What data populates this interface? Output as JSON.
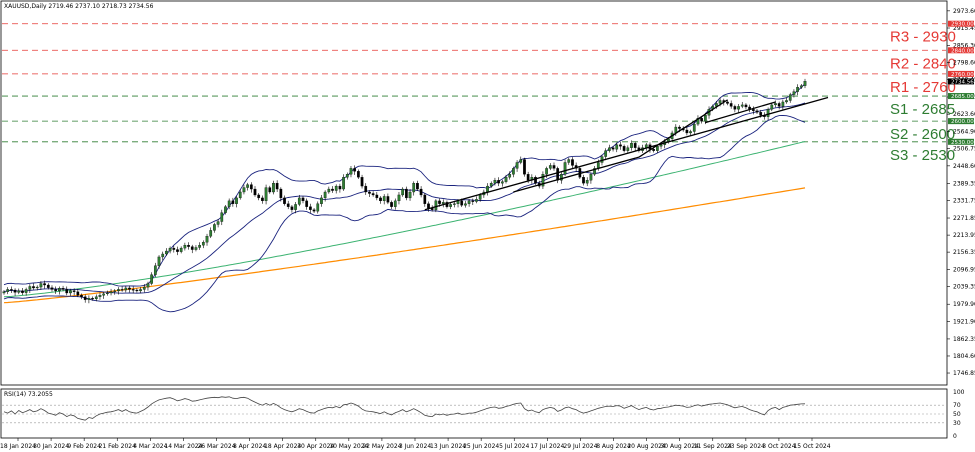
{
  "chart_data": {
    "type": "candlestick",
    "title": "XAUUSD,Daily  2719.46 2737.10 2718.73 2734.56",
    "price_axis": {
      "ticks": [
        "2973.60",
        "2915.45",
        "2856.30",
        "2798.60",
        "2740.45",
        "2681.75",
        "2623.60",
        "2564.90",
        "2506.75",
        "2448.60",
        "2389.35",
        "2331.75",
        "2271.85",
        "2213.95",
        "2156.35",
        "2096.95",
        "2039.35",
        "1979.90",
        "1921.90",
        "1862.35",
        "1804.60",
        "1746.85"
      ],
      "ylim": [
        1730,
        2990
      ],
      "current_price": "2734.56"
    },
    "date_axis": {
      "ticks": [
        "18 Jan 2024",
        "30 Jan 2024",
        "9 Feb 2024",
        "21 Feb 2024",
        "4 Mar 2024",
        "14 Mar 2024",
        "26 Mar 2024",
        "8 Apr 2024",
        "18 Apr 2024",
        "30 Apr 2024",
        "10 May 2024",
        "22 May 2024",
        "3 Jun 2024",
        "13 Jun 2024",
        "25 Jun 2024",
        "5 Jul 2024",
        "17 Jul 2024",
        "29 Jul 2024",
        "8 Aug 2024",
        "20 Aug 2024",
        "30 Aug 2024",
        "11 Sep 2024",
        "23 Sep 2024",
        "3 Oct 2024",
        "15 Oct 2024"
      ]
    },
    "levels": [
      {
        "label": "R3 - 2930",
        "price": 2930,
        "tag": "2930.00",
        "color": "#e53935",
        "style": "dashed"
      },
      {
        "label": "R2 - 2840",
        "price": 2840,
        "tag": "2840.00",
        "color": "#e53935",
        "style": "dashed"
      },
      {
        "label": "R1 - 2760",
        "price": 2760,
        "tag": "2760.00",
        "color": "#e53935",
        "style": "dashed"
      },
      {
        "label": "S1 - 2685",
        "price": 2685,
        "tag": "2685.00",
        "color": "#2e7d32",
        "style": "dashed"
      },
      {
        "label": "S2 - 2600",
        "price": 2600,
        "tag": "2600.00",
        "color": "#2e7d32",
        "style": "dashed"
      },
      {
        "label": "S3 - 2530",
        "price": 2530,
        "tag": "2530.00",
        "color": "#2e7d32",
        "style": "dashed"
      }
    ],
    "candles_close": [
      2022,
      2030,
      2028,
      2020,
      2025,
      2019,
      2030,
      2040,
      2035,
      2038,
      2050,
      2045,
      2036,
      2030,
      2025,
      2034,
      2030,
      2018,
      2026,
      2022,
      2010,
      2005,
      1995,
      2000,
      1998,
      2005,
      2010,
      2015,
      2018,
      2022,
      2025,
      2030,
      2028,
      2035,
      2030,
      2028,
      2025,
      2030,
      2038,
      2050,
      2080,
      2110,
      2140,
      2150,
      2160,
      2170,
      2165,
      2158,
      2170,
      2180,
      2175,
      2165,
      2172,
      2180,
      2190,
      2210,
      2230,
      2250,
      2260,
      2290,
      2310,
      2330,
      2320,
      2340,
      2360,
      2375,
      2385,
      2370,
      2350,
      2340,
      2330,
      2375,
      2360,
      2390,
      2370,
      2340,
      2320,
      2310,
      2300,
      2318,
      2340,
      2330,
      2310,
      2300,
      2295,
      2320,
      2340,
      2360,
      2370,
      2365,
      2380,
      2370,
      2410,
      2420,
      2440,
      2430,
      2410,
      2380,
      2360,
      2355,
      2350,
      2340,
      2330,
      2345,
      2325,
      2310,
      2330,
      2350,
      2370,
      2340,
      2360,
      2390,
      2370,
      2350,
      2320,
      2305,
      2300,
      2330,
      2320,
      2325,
      2310,
      2318,
      2320,
      2330,
      2315,
      2320,
      2330,
      2328,
      2335,
      2350,
      2360,
      2380,
      2390,
      2400,
      2390,
      2395,
      2410,
      2420,
      2440,
      2460,
      2470,
      2420,
      2400,
      2410,
      2390,
      2380,
      2420,
      2440,
      2450,
      2440,
      2400,
      2420,
      2460,
      2470,
      2450,
      2440,
      2410,
      2390,
      2400,
      2420,
      2440,
      2460,
      2480,
      2500,
      2510,
      2505,
      2520,
      2515,
      2500,
      2510,
      2525,
      2510,
      2500,
      2510,
      2520,
      2505,
      2500,
      2515,
      2520,
      2530,
      2540,
      2560,
      2580,
      2575,
      2570,
      2560,
      2565,
      2590,
      2610,
      2600,
      2620,
      2640,
      2650,
      2660,
      2670,
      2665,
      2660,
      2650,
      2640,
      2650,
      2655,
      2648,
      2640,
      2635,
      2630,
      2620,
      2615,
      2640,
      2655,
      2660,
      2650,
      2665,
      2670,
      2690,
      2700,
      2715,
      2720,
      2735
    ],
    "candles_range": [
      [
        0,
        211
      ]
    ],
    "sma_green_end": 2531,
    "sma_orange_end": 2374,
    "rsi": {
      "label": "RSI(14) 73.2055",
      "ticks": [
        "100",
        "70",
        "50",
        "30",
        "0"
      ],
      "levels": [
        70,
        50,
        30
      ],
      "values": [
        55,
        52,
        57,
        50,
        58,
        53,
        56,
        60,
        55,
        57,
        62,
        58,
        52,
        50,
        47,
        53,
        50,
        44,
        48,
        46,
        40,
        38,
        36,
        42,
        40,
        46,
        50,
        52,
        54,
        55,
        57,
        60,
        56,
        60,
        55,
        53,
        52,
        56,
        60,
        66,
        73,
        78,
        82,
        84,
        86,
        87,
        84,
        80,
        82,
        85,
        83,
        79,
        80,
        82,
        84,
        86,
        87,
        88,
        87,
        89,
        88,
        89,
        86,
        85,
        87,
        88,
        86,
        81,
        77,
        73,
        70,
        74,
        70,
        74,
        70,
        64,
        60,
        57,
        55,
        58,
        62,
        60,
        56,
        53,
        52,
        57,
        60,
        63,
        65,
        64,
        67,
        64,
        71,
        72,
        75,
        72,
        68,
        61,
        57,
        56,
        55,
        53,
        51,
        55,
        51,
        48,
        53,
        56,
        60,
        55,
        58,
        62,
        58,
        53,
        47,
        45,
        44,
        50,
        48,
        50,
        47,
        49,
        50,
        52,
        49,
        50,
        52,
        52,
        54,
        57,
        60,
        63,
        65,
        66,
        63,
        64,
        67,
        69,
        72,
        74,
        75,
        62,
        57,
        59,
        55,
        53,
        60,
        63,
        65,
        63,
        56,
        59,
        64,
        66,
        62,
        60,
        55,
        52,
        54,
        57,
        60,
        63,
        65,
        67,
        68,
        67,
        69,
        68,
        63,
        66,
        69,
        64,
        60,
        63,
        65,
        61,
        59,
        62,
        63,
        65,
        66,
        68,
        70,
        69,
        68,
        65,
        66,
        69,
        71,
        68,
        70,
        72,
        73,
        74,
        75,
        73,
        71,
        67,
        64,
        66,
        67,
        64,
        60,
        57,
        55,
        51,
        48,
        58,
        63,
        65,
        60,
        65,
        67,
        70,
        71,
        72,
        73,
        73.2
      ]
    }
  }
}
